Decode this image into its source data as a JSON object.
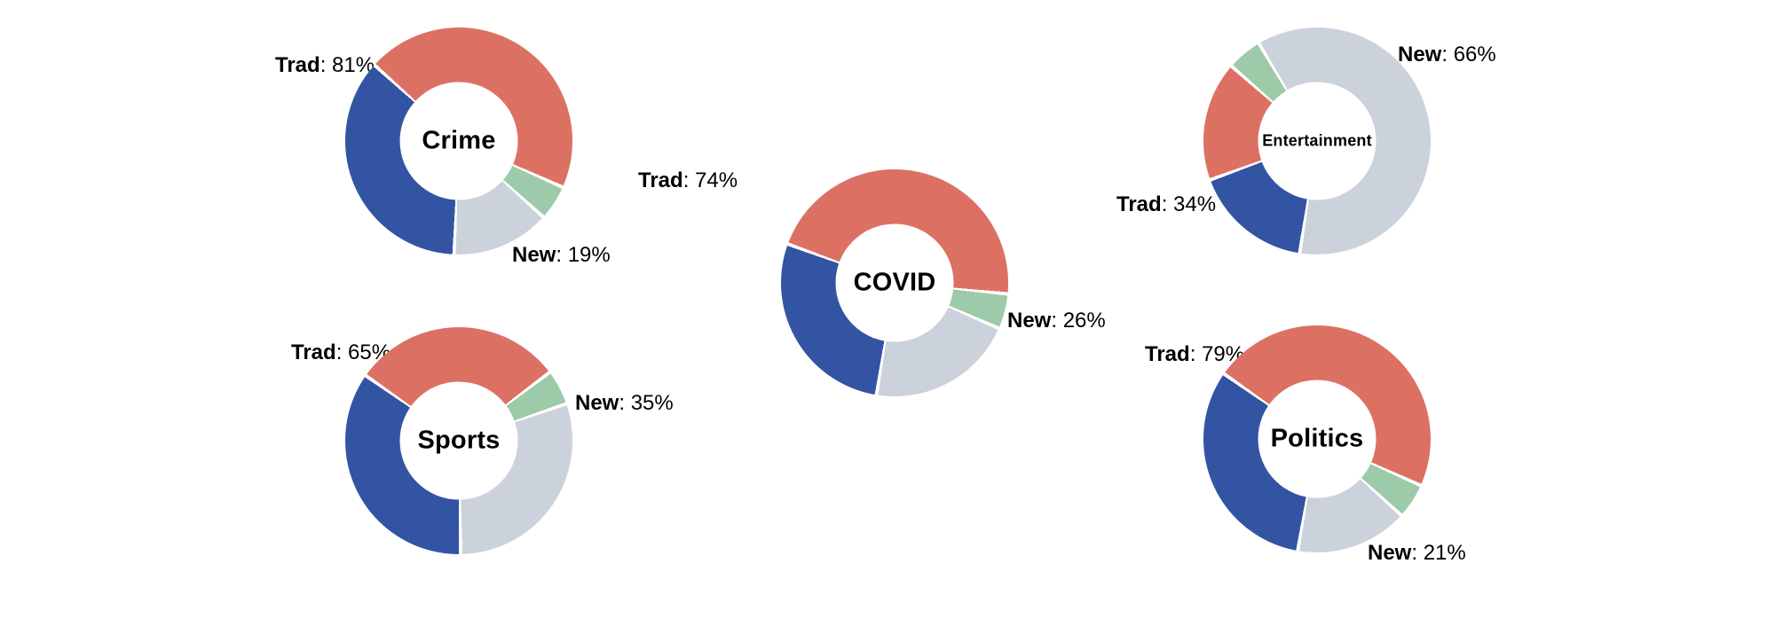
{
  "colors": {
    "trad_red": "#dc7163",
    "trad_blue": "#3254a3",
    "new_gray": "#ccd2dc",
    "new_green": "#9dcaa9",
    "background": "#ffffff",
    "label_text": "#000000"
  },
  "chart_data": [
    {
      "type": "pie",
      "variant": "donut",
      "title": "Crime",
      "trad_pct": 81,
      "new_pct": 19,
      "start_angle_deg": -48,
      "slices": [
        {
          "group": "Trad",
          "color": "trad_red",
          "value": 45
        },
        {
          "group": "New",
          "color": "new_green",
          "value": 5
        },
        {
          "group": "New",
          "color": "new_gray",
          "value": 14
        },
        {
          "group": "Trad",
          "color": "trad_blue",
          "value": 36
        }
      ],
      "trad_label": {
        "bold": "Trad",
        "rest": ": 81%"
      },
      "new_label": {
        "bold": "New",
        "rest": ": 19%"
      }
    },
    {
      "type": "pie",
      "variant": "donut",
      "title": "Sports",
      "trad_pct": 65,
      "new_pct": 35,
      "start_angle_deg": -55,
      "slices": [
        {
          "group": "Trad",
          "color": "trad_red",
          "value": 30
        },
        {
          "group": "New",
          "color": "new_green",
          "value": 5
        },
        {
          "group": "New",
          "color": "new_gray",
          "value": 30
        },
        {
          "group": "Trad",
          "color": "trad_blue",
          "value": 35
        }
      ],
      "trad_label": {
        "bold": "Trad",
        "rest": ": 65%"
      },
      "new_label": {
        "bold": "New",
        "rest": ": 35%"
      }
    },
    {
      "type": "pie",
      "variant": "donut",
      "title": "COVID",
      "trad_pct": 74,
      "new_pct": 26,
      "start_angle_deg": -70,
      "slices": [
        {
          "group": "Trad",
          "color": "trad_red",
          "value": 46
        },
        {
          "group": "New",
          "color": "new_green",
          "value": 5
        },
        {
          "group": "New",
          "color": "new_gray",
          "value": 21
        },
        {
          "group": "Trad",
          "color": "trad_blue",
          "value": 28
        }
      ],
      "trad_label": {
        "bold": "Trad",
        "rest": ": 74%"
      },
      "new_label": {
        "bold": "New",
        "rest": ": 26%"
      }
    },
    {
      "type": "pie",
      "variant": "donut",
      "title": "Entertainment",
      "trad_pct": 34,
      "new_pct": 66,
      "start_angle_deg": 250,
      "slices": [
        {
          "group": "Trad",
          "color": "trad_red",
          "value": 17
        },
        {
          "group": "New",
          "color": "new_green",
          "value": 5
        },
        {
          "group": "New",
          "color": "new_gray",
          "value": 61
        },
        {
          "group": "Trad",
          "color": "trad_blue",
          "value": 17
        }
      ],
      "trad_label": {
        "bold": "Trad",
        "rest": ": 34%"
      },
      "new_label": {
        "bold": "New",
        "rest": ": 66%"
      }
    },
    {
      "type": "pie",
      "variant": "donut",
      "title": "Politics",
      "trad_pct": 79,
      "new_pct": 21,
      "start_angle_deg": -55,
      "slices": [
        {
          "group": "Trad",
          "color": "trad_red",
          "value": 47
        },
        {
          "group": "New",
          "color": "new_green",
          "value": 5
        },
        {
          "group": "New",
          "color": "new_gray",
          "value": 16
        },
        {
          "group": "Trad",
          "color": "trad_blue",
          "value": 32
        }
      ],
      "trad_label": {
        "bold": "Trad",
        "rest": ": 79%"
      },
      "new_label": {
        "bold": "New",
        "rest": ": 21%"
      }
    }
  ]
}
